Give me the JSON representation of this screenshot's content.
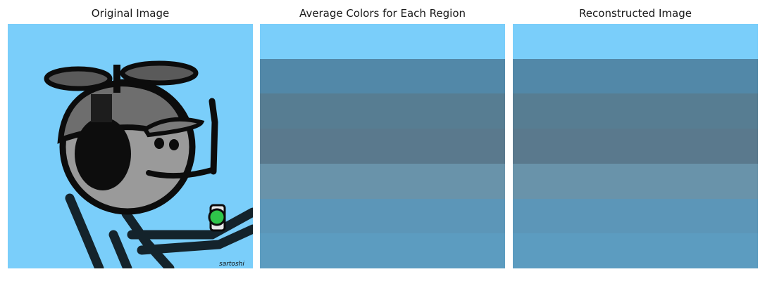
{
  "panels": [
    {
      "title": "Original Image"
    },
    {
      "title": "Average Colors for Each Region"
    },
    {
      "title": "Reconstructed Image"
    }
  ],
  "original": {
    "background": "#7acefa",
    "signature": "sartoshi"
  },
  "region_colors": [
    "#7acefa",
    "#5288a8",
    "#577d92",
    "#5a798d",
    "#6993aa",
    "#5c96b8",
    "#5c9cc0"
  ]
}
